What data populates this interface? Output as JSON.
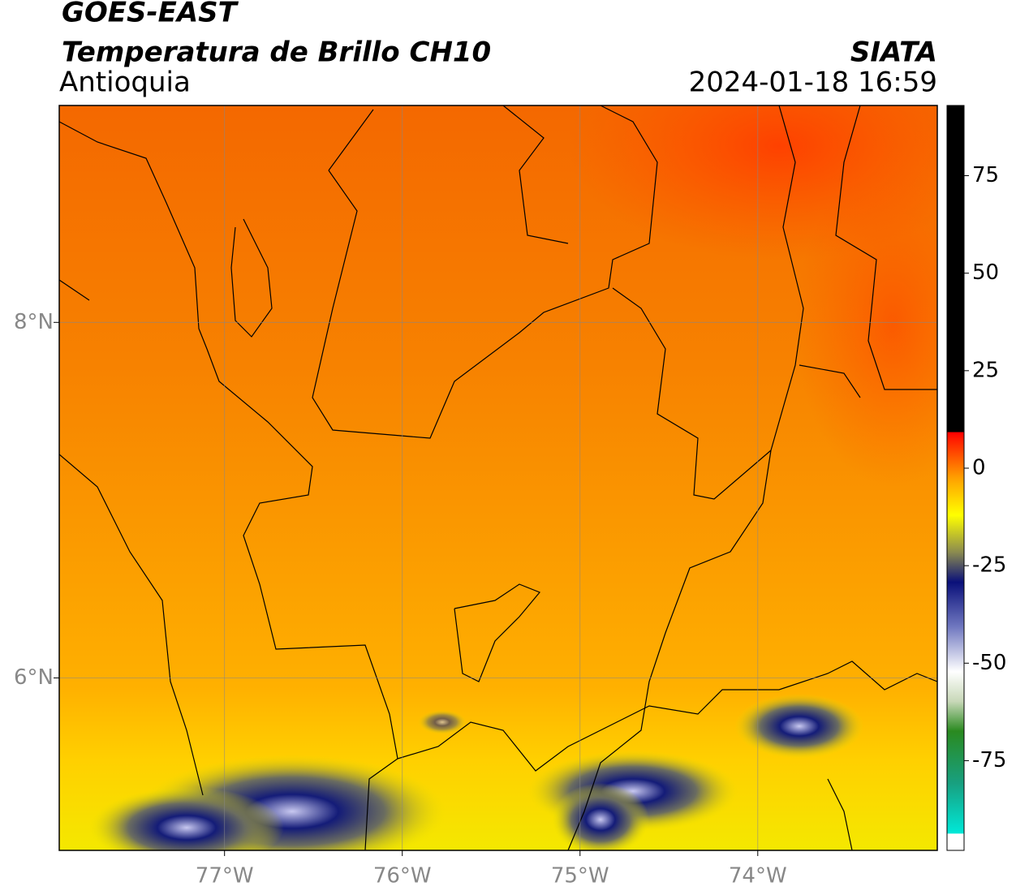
{
  "header": {
    "satellite": "GOES-EAST",
    "product": "Temperatura de Brillo CH10",
    "region": "Antioquia",
    "source": "SIATA",
    "datetime": "2024-01-18 16:59"
  },
  "map": {
    "lon_range": [
      -77.93,
      -72.99
    ],
    "lat_range": [
      5.03,
      9.22
    ],
    "lon_ticks": [
      {
        "value": -77,
        "label": "77°W"
      },
      {
        "value": -76,
        "label": "76°W"
      },
      {
        "value": -75,
        "label": "75°W"
      },
      {
        "value": -74,
        "label": "74°W"
      }
    ],
    "lat_ticks": [
      {
        "value": 8,
        "label": "8°N"
      },
      {
        "value": 6,
        "label": "6°N"
      }
    ]
  },
  "colorbar": {
    "range": [
      -98,
      93
    ],
    "ticks": [
      75,
      50,
      25,
      0,
      -25,
      -50,
      -75
    ]
  }
}
